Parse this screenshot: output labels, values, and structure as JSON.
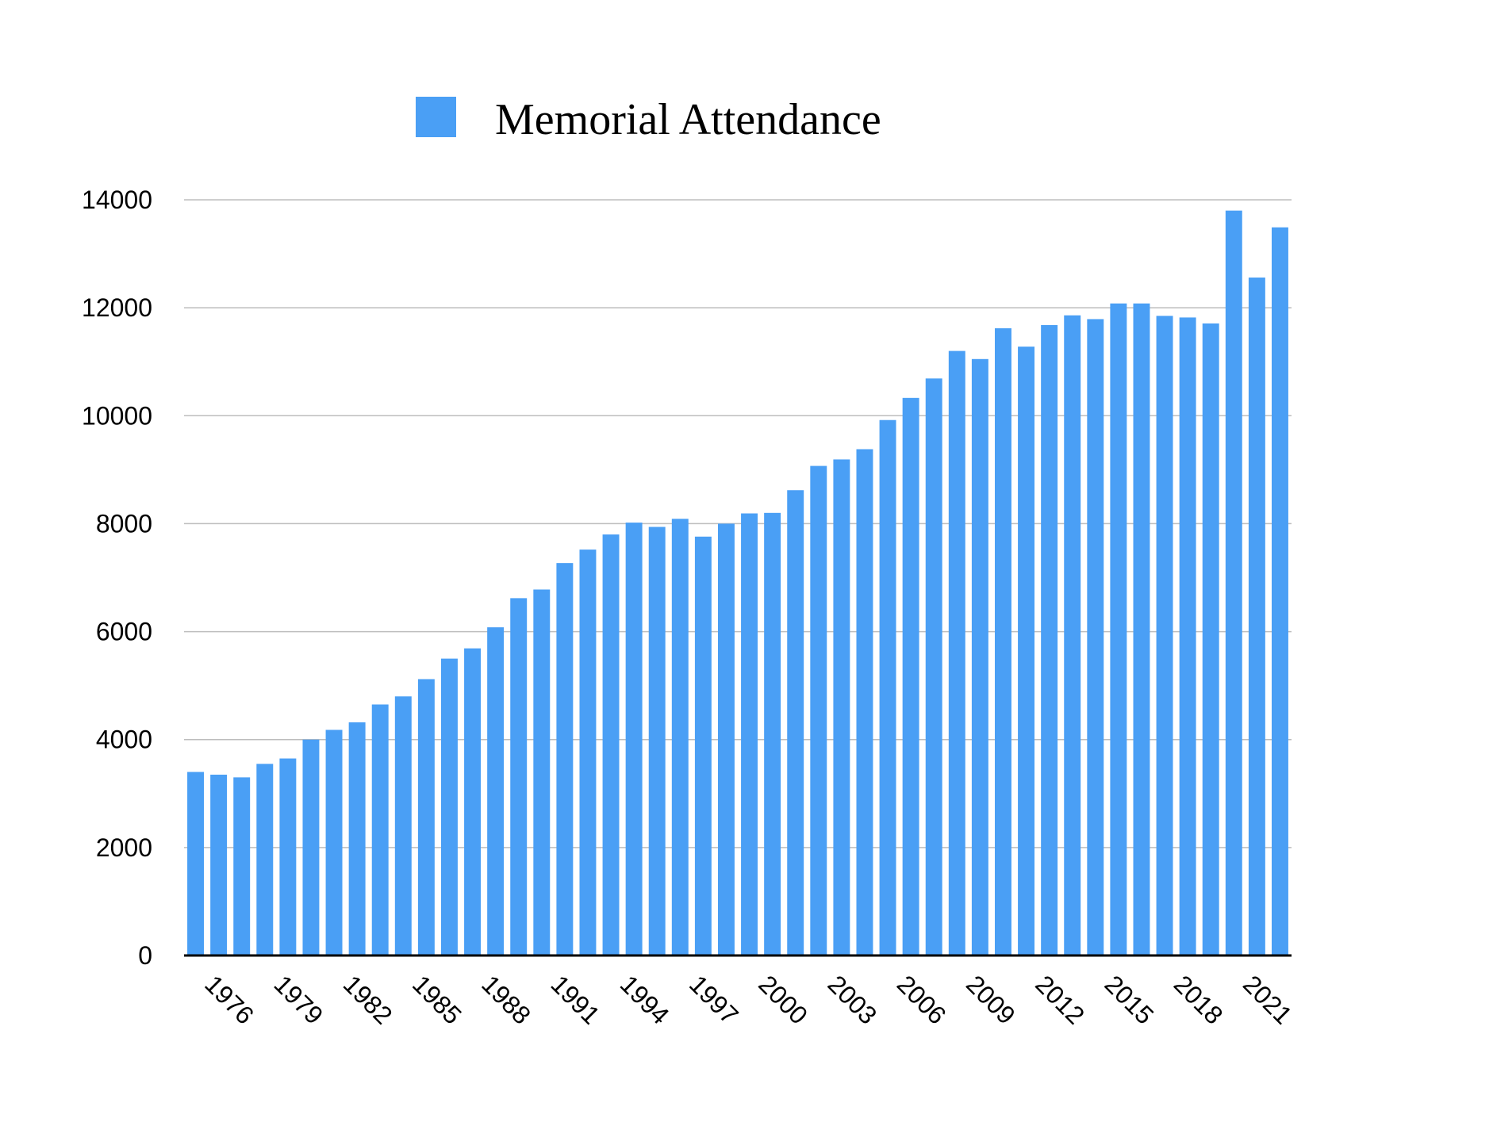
{
  "chart_data": {
    "type": "bar",
    "legend": {
      "label": "Memorial Attendance",
      "position": "top-center"
    },
    "series": [
      {
        "name": "Memorial Attendance",
        "color": "#4a9ff5",
        "values": [
          3400,
          3350,
          3300,
          3550,
          3650,
          4000,
          4180,
          4320,
          4650,
          4800,
          5120,
          5500,
          5690,
          6080,
          6620,
          6780,
          7270,
          7520,
          7800,
          8020,
          7940,
          8090,
          7760,
          8000,
          8190,
          8200,
          8620,
          9070,
          9190,
          9380,
          9920,
          10330,
          10690,
          11200,
          11050,
          11620,
          11280,
          11680,
          11860,
          11790,
          12080,
          12080,
          11850,
          11820,
          11710,
          13800,
          12560,
          13490
        ]
      }
    ],
    "categories": [
      1975,
      1976,
      1977,
      1978,
      1979,
      1980,
      1981,
      1982,
      1983,
      1984,
      1985,
      1986,
      1987,
      1988,
      1989,
      1990,
      1991,
      1992,
      1993,
      1994,
      1995,
      1996,
      1997,
      1998,
      1999,
      2000,
      2001,
      2002,
      2003,
      2004,
      2005,
      2006,
      2007,
      2008,
      2009,
      2010,
      2011,
      2012,
      2013,
      2014,
      2015,
      2016,
      2017,
      2018,
      2019,
      2020,
      2021,
      2022
    ],
    "x_tick_labels": [
      {
        "year": 1976,
        "label": "1976"
      },
      {
        "year": 1979,
        "label": "1979"
      },
      {
        "year": 1982,
        "label": "1982"
      },
      {
        "year": 1985,
        "label": "1985"
      },
      {
        "year": 1988,
        "label": "1988"
      },
      {
        "year": 1991,
        "label": "1991"
      },
      {
        "year": 1994,
        "label": "1994"
      },
      {
        "year": 1997,
        "label": "1997"
      },
      {
        "year": 2000,
        "label": "2000"
      },
      {
        "year": 2003,
        "label": "2003"
      },
      {
        "year": 2006,
        "label": "2006"
      },
      {
        "year": 2009,
        "label": "2009"
      },
      {
        "year": 2012,
        "label": "2012"
      },
      {
        "year": 2015,
        "label": "2015"
      },
      {
        "year": 2018,
        "label": "2018"
      },
      {
        "year": 2021,
        "label": "2021"
      }
    ],
    "y_ticks": [
      0,
      2000,
      4000,
      6000,
      8000,
      10000,
      12000,
      14000
    ],
    "ylim": [
      0,
      14000
    ],
    "grid": true,
    "title": "",
    "xlabel": "",
    "ylabel": ""
  }
}
